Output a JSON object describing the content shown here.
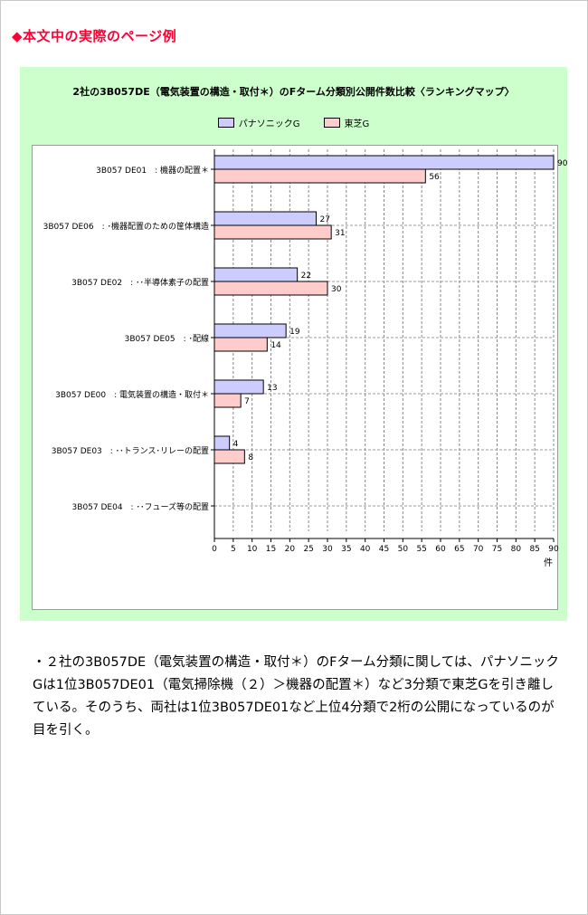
{
  "header": {
    "title": "◆本文中の実際のページ例"
  },
  "chart_data": {
    "type": "bar",
    "orientation": "horizontal",
    "title": "2社の3B057DE（電気装置の構造・取付＊）のFターム分類別公開件数比較〈ランキングマップ〉",
    "categories": [
      "3B057 DE01　: 機器の配置＊",
      "3B057 DE06　: ･機器配置のための筐体構造",
      "3B057 DE02　: ･･半導体素子の配置",
      "3B057 DE05　: ･配線",
      "3B057 DE00　: 電気装置の構造・取付＊",
      "3B057 DE03　: ･･トランス･リレーの配置",
      "3B057 DE04　: ･･フューズ等の配置"
    ],
    "series": [
      {
        "name": "パナソニックG",
        "color": "#ccccff",
        "values": [
          90,
          27,
          22,
          19,
          13,
          4,
          0
        ]
      },
      {
        "name": "東芝G",
        "color": "#ffcccc",
        "values": [
          56,
          31,
          30,
          14,
          7,
          8,
          0
        ]
      }
    ],
    "xlim": [
      0,
      90
    ],
    "x_ticks": [
      0,
      5,
      10,
      15,
      20,
      25,
      30,
      35,
      40,
      45,
      50,
      55,
      60,
      65,
      70,
      75,
      80,
      85,
      90
    ],
    "xlabel": "件",
    "grid": "vertical dashed",
    "legend_position": "top-center"
  },
  "body": {
    "paragraph": "・２社の3B057DE（電気装置の構造・取付＊）のFターム分類に関しては、パナソニックGは1位3B057DE01（電気掃除機（２）＞機器の配置＊）など3分類で東芝Gを引き離している。そのうち、両社は1位3B057DE01など上位4分類で2桁の公開になっているのが目を引く。"
  }
}
